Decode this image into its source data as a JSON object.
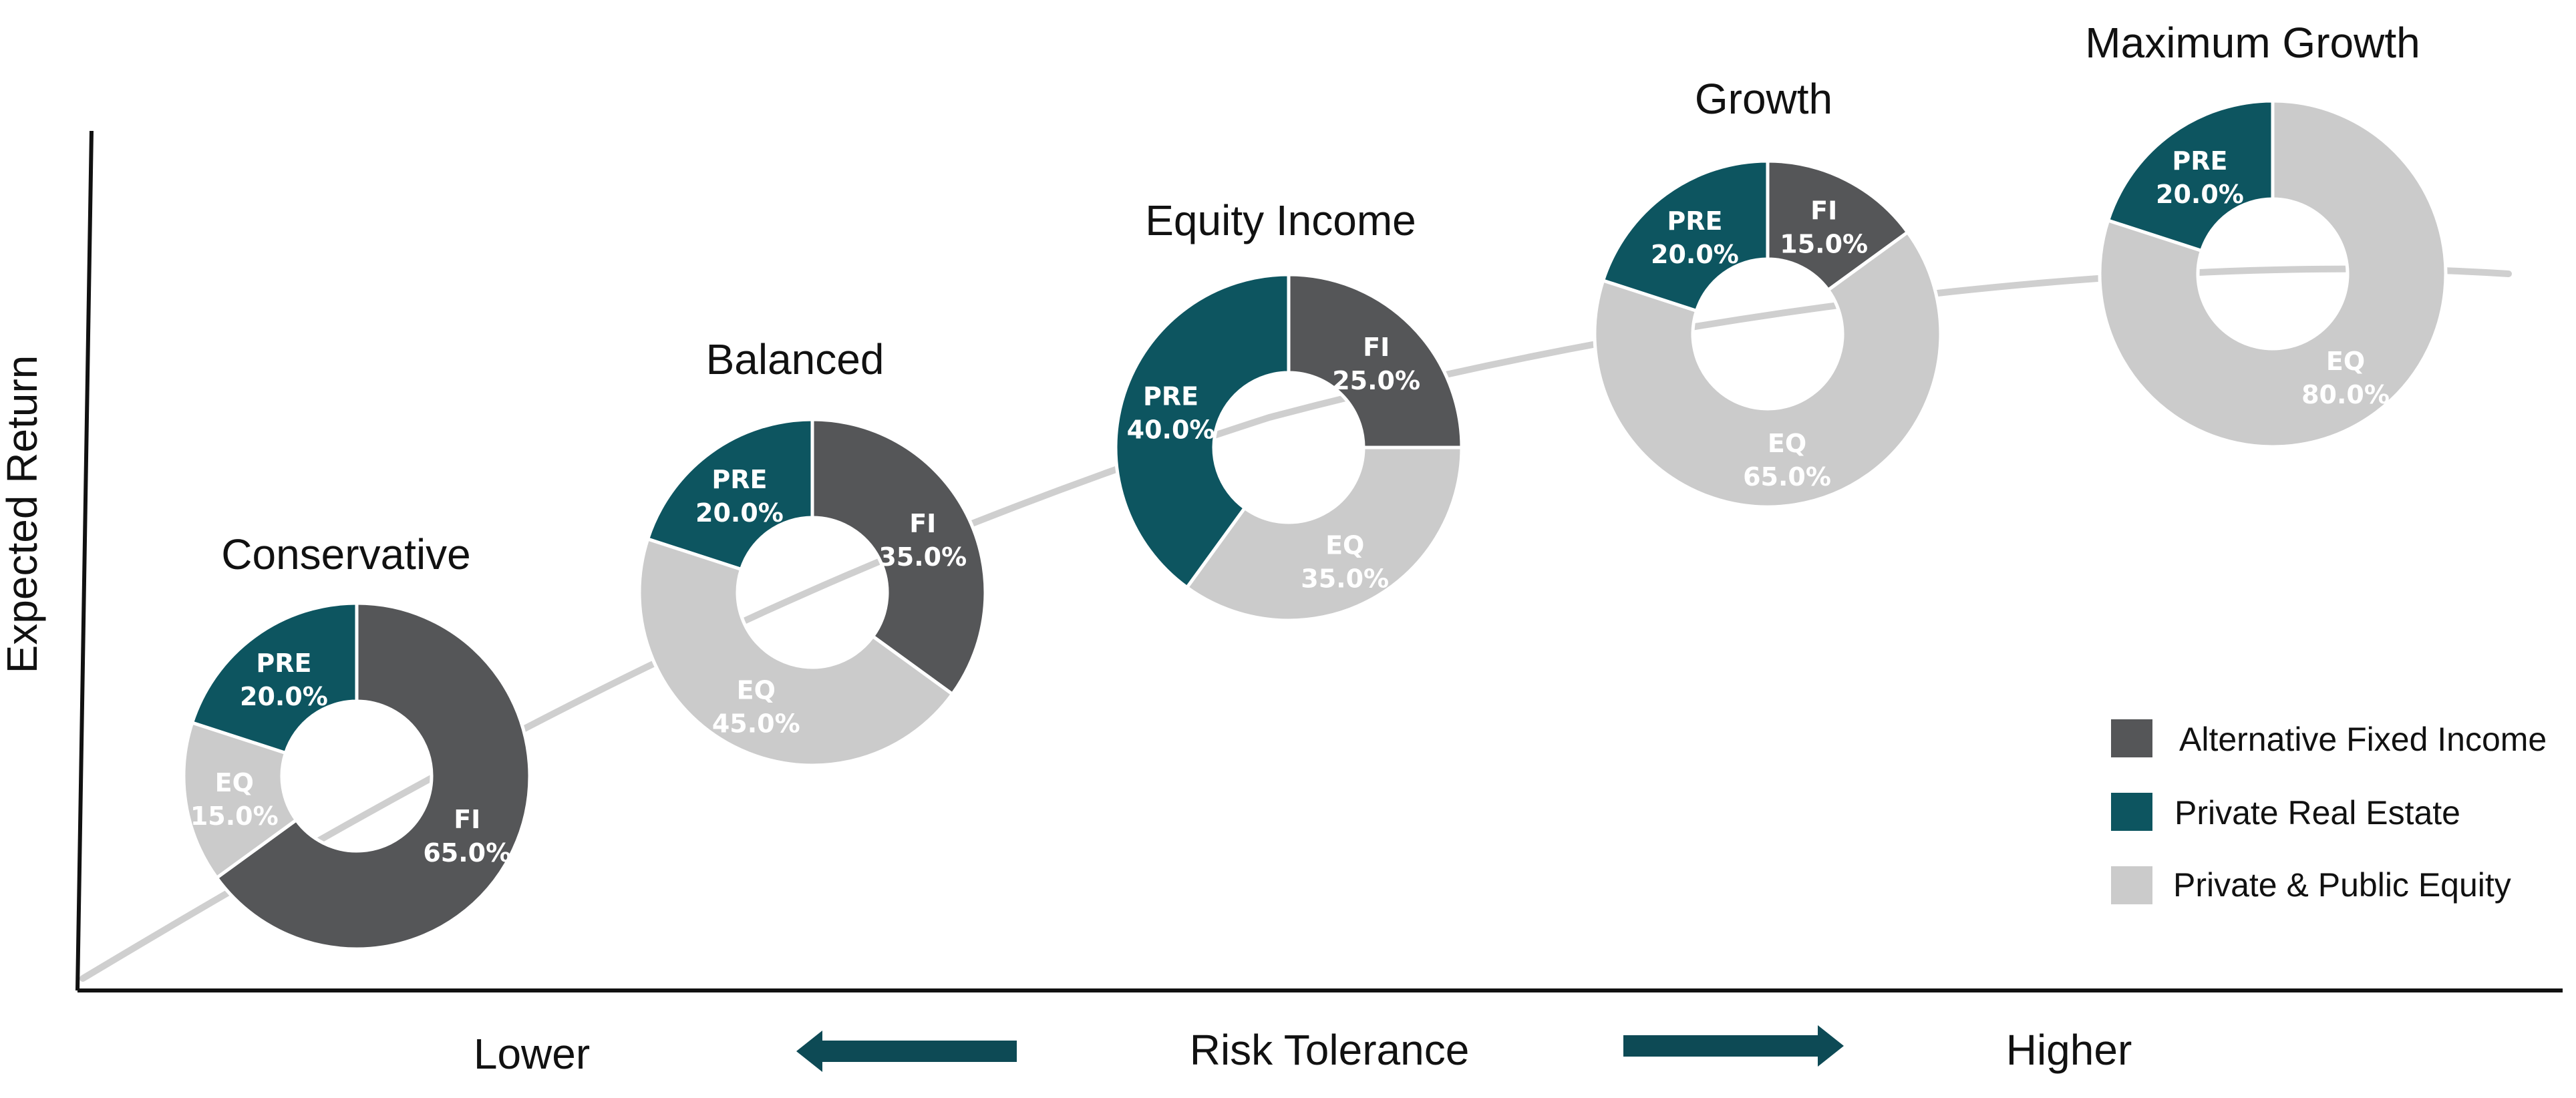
{
  "chart_data": {
    "type": "pie",
    "subtype": "donut",
    "title": "",
    "ylabel": "Expected Return",
    "xlabel": "Risk Tolerance",
    "x_low_label": "Lower",
    "x_high_label": "Higher",
    "legend_position": "bottom-right",
    "legend": [
      {
        "key": "FI",
        "label": "Alternative Fixed Income",
        "color": "#555658"
      },
      {
        "key": "PRE",
        "label": "Private Real Estate",
        "color": "#0d5560"
      },
      {
        "key": "EQ",
        "label": "Private & Public Equity",
        "color": "#cbcbcb"
      }
    ],
    "portfolios": [
      {
        "name": "Conservative",
        "slices": [
          {
            "key": "FI",
            "label": "FI",
            "value": 65.0,
            "value_label": "65.0%"
          },
          {
            "key": "EQ",
            "label": "EQ",
            "value": 15.0,
            "value_label": "15.0%"
          },
          {
            "key": "PRE",
            "label": "PRE",
            "value": 20.0,
            "value_label": "20.0%"
          }
        ]
      },
      {
        "name": "Balanced",
        "slices": [
          {
            "key": "FI",
            "label": "FI",
            "value": 35.0,
            "value_label": "35.0%"
          },
          {
            "key": "EQ",
            "label": "EQ",
            "value": 45.0,
            "value_label": "45.0%"
          },
          {
            "key": "PRE",
            "label": "PRE",
            "value": 20.0,
            "value_label": "20.0%"
          }
        ]
      },
      {
        "name": "Equity Income",
        "slices": [
          {
            "key": "FI",
            "label": "FI",
            "value": 25.0,
            "value_label": "25.0%"
          },
          {
            "key": "EQ",
            "label": "EQ",
            "value": 35.0,
            "value_label": "35.0%"
          },
          {
            "key": "PRE",
            "label": "PRE",
            "value": 40.0,
            "value_label": "40.0%"
          }
        ]
      },
      {
        "name": "Growth",
        "slices": [
          {
            "key": "FI",
            "label": "FI",
            "value": 15.0,
            "value_label": "15.0%"
          },
          {
            "key": "EQ",
            "label": "EQ",
            "value": 65.0,
            "value_label": "65.0%"
          },
          {
            "key": "PRE",
            "label": "PRE",
            "value": 20.0,
            "value_label": "20.0%"
          }
        ]
      },
      {
        "name": "Maximum Growth",
        "slices": [
          {
            "key": "EQ",
            "label": "EQ",
            "value": 80.0,
            "value_label": "80.0%"
          },
          {
            "key": "PRE",
            "label": "PRE",
            "value": 20.0,
            "value_label": "20.0%"
          }
        ]
      }
    ]
  },
  "colors": {
    "label_on_dark": "#ffffff",
    "curve": "#cfcfcf",
    "arrow": "#0d4a55",
    "axis": "#111111"
  }
}
